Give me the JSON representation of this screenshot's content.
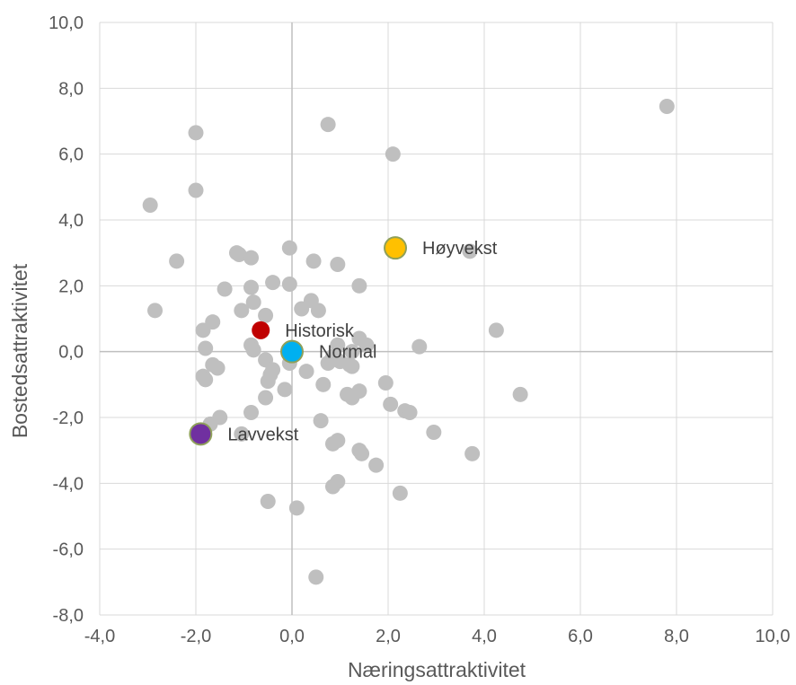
{
  "chart_data": {
    "type": "scatter",
    "xlabel": "Næringsattraktivitet",
    "ylabel": "Bostedsattraktivitet",
    "xlim": [
      -4,
      10
    ],
    "ylim": [
      -8,
      10
    ],
    "x_ticks": [
      "-4,0",
      "-2,0",
      "0,0",
      "2,0",
      "4,0",
      "6,0",
      "8,0",
      "10,0"
    ],
    "y_ticks": [
      "-8,0",
      "-6,0",
      "-4,0",
      "-2,0",
      "0,0",
      "2,0",
      "4,0",
      "6,0",
      "8,0",
      "10,0"
    ],
    "x_tick_values": [
      -4,
      -2,
      0,
      2,
      4,
      6,
      8,
      10
    ],
    "y_tick_values": [
      -8,
      -6,
      -4,
      -2,
      0,
      2,
      4,
      6,
      8,
      10
    ],
    "grid": true,
    "legend": "none",
    "series": [
      {
        "color": "#bfbfbf",
        "points": [
          [
            7.8,
            7.45
          ],
          [
            0.75,
            6.9
          ],
          [
            -2.0,
            6.65
          ],
          [
            2.1,
            6.0
          ],
          [
            -2.0,
            4.9
          ],
          [
            -2.95,
            4.45
          ],
          [
            3.7,
            3.05
          ],
          [
            -1.15,
            3.0
          ],
          [
            -0.05,
            3.15
          ],
          [
            -1.1,
            2.95
          ],
          [
            -0.85,
            2.85
          ],
          [
            -2.4,
            2.75
          ],
          [
            0.45,
            2.75
          ],
          [
            0.95,
            2.65
          ],
          [
            -0.4,
            2.1
          ],
          [
            -0.05,
            2.05
          ],
          [
            1.4,
            2.0
          ],
          [
            -1.4,
            1.9
          ],
          [
            -0.85,
            1.95
          ],
          [
            0.4,
            1.55
          ],
          [
            -0.8,
            1.5
          ],
          [
            0.2,
            1.3
          ],
          [
            -1.05,
            1.25
          ],
          [
            0.55,
            1.25
          ],
          [
            -2.85,
            1.25
          ],
          [
            -0.55,
            1.1
          ],
          [
            -1.65,
            0.9
          ],
          [
            -1.85,
            0.65
          ],
          [
            4.25,
            0.65
          ],
          [
            1.4,
            0.4
          ],
          [
            1.55,
            0.2
          ],
          [
            0.95,
            0.2
          ],
          [
            -0.85,
            0.2
          ],
          [
            -1.8,
            0.1
          ],
          [
            -0.8,
            0.05
          ],
          [
            2.65,
            0.15
          ],
          [
            1.25,
            0.0
          ],
          [
            0.85,
            -0.15
          ],
          [
            1.0,
            -0.3
          ],
          [
            1.2,
            -0.4
          ],
          [
            0.75,
            -0.35
          ],
          [
            -0.55,
            -0.25
          ],
          [
            1.25,
            -0.45
          ],
          [
            -0.05,
            -0.35
          ],
          [
            -1.65,
            -0.4
          ],
          [
            -1.55,
            -0.5
          ],
          [
            -0.4,
            -0.55
          ],
          [
            -0.45,
            -0.7
          ],
          [
            0.3,
            -0.6
          ],
          [
            -1.85,
            -0.75
          ],
          [
            -1.8,
            -0.85
          ],
          [
            -0.5,
            -0.9
          ],
          [
            1.95,
            -0.95
          ],
          [
            0.65,
            -1.0
          ],
          [
            -0.15,
            -1.15
          ],
          [
            1.4,
            -1.2
          ],
          [
            1.15,
            -1.3
          ],
          [
            1.25,
            -1.4
          ],
          [
            4.75,
            -1.3
          ],
          [
            -0.55,
            -1.4
          ],
          [
            2.05,
            -1.6
          ],
          [
            2.35,
            -1.8
          ],
          [
            2.45,
            -1.85
          ],
          [
            -0.85,
            -1.85
          ],
          [
            -1.5,
            -2.0
          ],
          [
            0.6,
            -2.1
          ],
          [
            -1.7,
            -2.2
          ],
          [
            2.95,
            -2.45
          ],
          [
            -1.05,
            -2.5
          ],
          [
            0.95,
            -2.7
          ],
          [
            0.85,
            -2.8
          ],
          [
            1.4,
            -3.0
          ],
          [
            1.45,
            -3.1
          ],
          [
            3.75,
            -3.1
          ],
          [
            1.75,
            -3.45
          ],
          [
            0.95,
            -3.95
          ],
          [
            0.85,
            -4.1
          ],
          [
            2.25,
            -4.3
          ],
          [
            -0.5,
            -4.55
          ],
          [
            0.1,
            -4.75
          ],
          [
            0.5,
            -6.85
          ]
        ]
      },
      {
        "name": "Historisk",
        "color": "#c00000",
        "points": [
          [
            -0.65,
            0.65
          ]
        ]
      },
      {
        "name": "Normal",
        "color": "#00b0f0",
        "points": [
          [
            0.0,
            0.0
          ]
        ]
      },
      {
        "name": "Høyvekst",
        "color": "#ffc000",
        "points": [
          [
            2.15,
            3.15
          ]
        ]
      },
      {
        "name": "Lavvekst",
        "color": "#7030a0",
        "points": [
          [
            -1.9,
            -2.5
          ]
        ]
      }
    ]
  },
  "colors": {
    "grid": "#d9d9d9",
    "zero_axis": "#bfbfbf",
    "highlight_outline": "#8fa05a"
  }
}
